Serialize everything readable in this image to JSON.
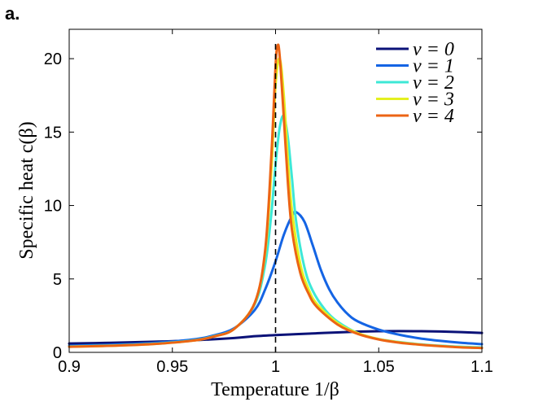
{
  "panel_label": "a.",
  "chart_data": {
    "type": "line",
    "title": "",
    "xlabel": "Temperature 1/β",
    "ylabel": "Specific heat c(β)",
    "xlim": [
      0.9,
      1.1
    ],
    "ylim": [
      0,
      22
    ],
    "xticks": [
      0.9,
      0.95,
      1,
      1.05,
      1.1
    ],
    "xtick_labels": [
      "0.9",
      "0.95",
      "1",
      "1.05",
      "1.1"
    ],
    "yticks": [
      0,
      5,
      10,
      15,
      20
    ],
    "ytick_labels": [
      "0",
      "5",
      "10",
      "15",
      "20"
    ],
    "grid": false,
    "legend_position": "top-right",
    "critical_line": {
      "x": 1.0,
      "style": "dashed",
      "color": "#000000"
    },
    "series": [
      {
        "name": "v = 0",
        "color": "#0b1278",
        "x": [
          0.9,
          0.92,
          0.94,
          0.96,
          0.98,
          0.99,
          1.0,
          1.01,
          1.02,
          1.03,
          1.04,
          1.05,
          1.06,
          1.07,
          1.08,
          1.09,
          1.1
        ],
        "y": [
          0.6,
          0.65,
          0.72,
          0.82,
          0.98,
          1.1,
          1.18,
          1.24,
          1.3,
          1.36,
          1.41,
          1.44,
          1.45,
          1.44,
          1.42,
          1.38,
          1.32
        ]
      },
      {
        "name": "v = 1",
        "color": "#1464e4",
        "x": [
          0.9,
          0.92,
          0.94,
          0.96,
          0.97,
          0.98,
          0.99,
          0.995,
          1.0,
          1.004,
          1.008,
          1.01,
          1.014,
          1.018,
          1.022,
          1.026,
          1.03,
          1.035,
          1.04,
          1.05,
          1.06,
          1.07,
          1.08,
          1.09,
          1.1
        ],
        "y": [
          0.45,
          0.52,
          0.64,
          0.88,
          1.15,
          1.65,
          2.9,
          4.3,
          6.2,
          8.0,
          9.3,
          9.55,
          8.9,
          7.3,
          5.6,
          4.3,
          3.4,
          2.6,
          2.1,
          1.55,
          1.2,
          0.95,
          0.78,
          0.65,
          0.56
        ]
      },
      {
        "name": "v = 2",
        "color": "#3de8d6",
        "x": [
          0.9,
          0.92,
          0.94,
          0.96,
          0.97,
          0.98,
          0.99,
          0.995,
          0.998,
          1.0,
          1.002,
          1.004,
          1.006,
          1.008,
          1.01,
          1.014,
          1.018,
          1.024,
          1.03,
          1.04,
          1.05,
          1.06,
          1.07,
          1.08,
          1.09,
          1.1
        ],
        "y": [
          0.4,
          0.47,
          0.58,
          0.82,
          1.1,
          1.6,
          3.3,
          6.0,
          9.5,
          12.8,
          15.3,
          16.1,
          14.6,
          11.8,
          8.9,
          5.8,
          4.2,
          2.9,
          2.1,
          1.3,
          0.9,
          0.7,
          0.55,
          0.45,
          0.38,
          0.33
        ]
      },
      {
        "name": "v = 3",
        "color": "#e4f020",
        "x": [
          0.9,
          0.92,
          0.94,
          0.96,
          0.97,
          0.98,
          0.99,
          0.995,
          0.998,
          1.0,
          1.002,
          1.004,
          1.006,
          1.008,
          1.012,
          1.016,
          1.02,
          1.03,
          1.04,
          1.05,
          1.06,
          1.07,
          1.08,
          1.09,
          1.1
        ],
        "y": [
          0.38,
          0.45,
          0.56,
          0.8,
          1.08,
          1.6,
          3.4,
          6.8,
          12.5,
          18.2,
          20.0,
          17.5,
          13.0,
          9.6,
          6.0,
          4.3,
          3.3,
          2.0,
          1.3,
          0.9,
          0.68,
          0.53,
          0.43,
          0.35,
          0.3
        ]
      },
      {
        "name": "v = 4",
        "color": "#ec6414",
        "x": [
          0.9,
          0.92,
          0.94,
          0.96,
          0.97,
          0.98,
          0.99,
          0.995,
          0.998,
          1.0,
          1.001,
          1.002,
          1.004,
          1.006,
          1.008,
          1.012,
          1.016,
          1.02,
          1.03,
          1.04,
          1.05,
          1.06,
          1.07,
          1.08,
          1.09,
          1.1
        ],
        "y": [
          0.38,
          0.45,
          0.56,
          0.8,
          1.08,
          1.6,
          3.4,
          7.0,
          13.5,
          19.5,
          20.9,
          20.2,
          16.0,
          11.5,
          8.3,
          5.4,
          4.0,
          3.1,
          1.9,
          1.25,
          0.88,
          0.66,
          0.52,
          0.42,
          0.34,
          0.3
        ]
      }
    ]
  }
}
